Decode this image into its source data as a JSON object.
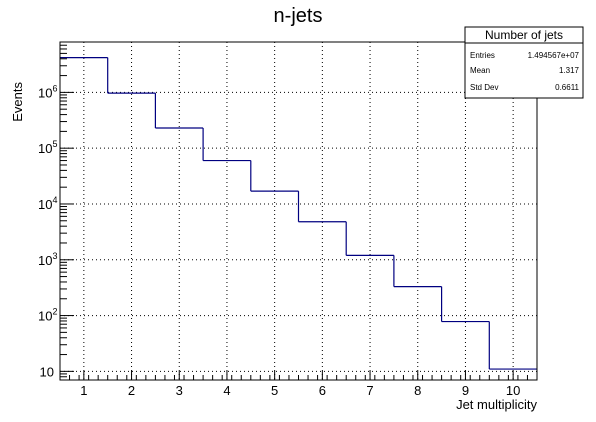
{
  "chart_data": {
    "type": "histogram",
    "title": "n-jets",
    "xlabel": "Jet multiplicity",
    "ylabel": "Events",
    "y_scale": "log",
    "xlim": [
      0.5,
      10.5
    ],
    "ylim": [
      7,
      8000000
    ],
    "grid": true,
    "x_ticks": [
      1,
      2,
      3,
      4,
      5,
      6,
      7,
      8,
      9,
      10
    ],
    "y_ticks": [
      {
        "value": 10,
        "base": "10",
        "exp": ""
      },
      {
        "value": 100,
        "base": "10",
        "exp": "2"
      },
      {
        "value": 1000,
        "base": "10",
        "exp": "3"
      },
      {
        "value": 10000,
        "base": "10",
        "exp": "4"
      },
      {
        "value": 100000,
        "base": "10",
        "exp": "5"
      },
      {
        "value": 1000000,
        "base": "10",
        "exp": "6"
      }
    ],
    "bins": {
      "edges": [
        0.5,
        1.5,
        2.5,
        3.5,
        4.5,
        5.5,
        6.5,
        7.5,
        8.5,
        9.5,
        10.5
      ],
      "values": [
        4200000,
        970000,
        230000,
        60000,
        17000,
        4800,
        1200,
        330,
        78,
        11
      ]
    },
    "line_color": "#000080",
    "stats_box": {
      "title": "Number of jets",
      "rows": [
        {
          "label": "Entries",
          "value": "1.494567e+07"
        },
        {
          "label": "Mean",
          "value": "1.317"
        },
        {
          "label": "Std Dev",
          "value": "0.6611"
        }
      ]
    }
  }
}
